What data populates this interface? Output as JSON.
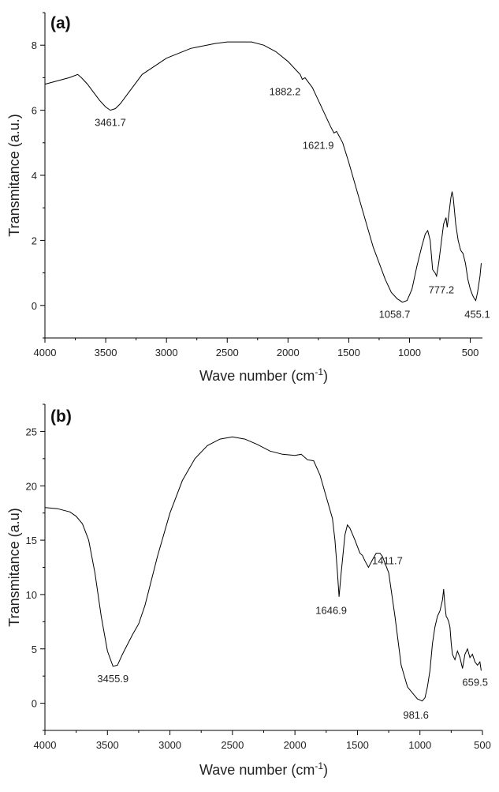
{
  "chart_data": [
    {
      "type": "line",
      "panel_label": "(a)",
      "xlabel": "Wave number (cm",
      "xlabel_sup": "-1",
      "xlabel_tail": ")",
      "ylabel": "Transmitance (a.u.)",
      "xlim": [
        4000,
        400
      ],
      "ylim": [
        -1,
        9
      ],
      "xticks": [
        4000,
        3500,
        3000,
        2500,
        2000,
        1500,
        1000,
        500
      ],
      "yticks": [
        0,
        2,
        4,
        6,
        8
      ],
      "grid": false,
      "series": [
        {
          "x": [
            4000,
            3900,
            3800,
            3730,
            3700,
            3650,
            3600,
            3550,
            3500,
            3461.7,
            3420,
            3380,
            3300,
            3200,
            3000,
            2800,
            2600,
            2500,
            2400,
            2300,
            2200,
            2100,
            2000,
            1950,
            1900,
            1882.2,
            1860,
            1800,
            1750,
            1700,
            1650,
            1621.9,
            1600,
            1550,
            1500,
            1400,
            1300,
            1200,
            1150,
            1100,
            1058.7,
            1020,
            980,
            940,
            900,
            870,
            850,
            830,
            810,
            790,
            777.2,
            760,
            740,
            720,
            700,
            690,
            670,
            660,
            650,
            640,
            620,
            600,
            580,
            560,
            540,
            520,
            500,
            480,
            465,
            455.1,
            440,
            420,
            410
          ],
          "y": [
            6.8,
            6.9,
            7.0,
            7.1,
            7.0,
            6.8,
            6.55,
            6.3,
            6.1,
            6.0,
            6.05,
            6.2,
            6.6,
            7.1,
            7.6,
            7.9,
            8.05,
            8.1,
            8.1,
            8.1,
            8.0,
            7.8,
            7.5,
            7.3,
            7.1,
            6.95,
            7.0,
            6.7,
            6.3,
            5.9,
            5.5,
            5.3,
            5.35,
            5.0,
            4.4,
            3.1,
            1.8,
            0.8,
            0.4,
            0.2,
            0.1,
            0.15,
            0.5,
            1.2,
            1.8,
            2.2,
            2.3,
            2.0,
            1.1,
            1.0,
            0.9,
            1.3,
            1.9,
            2.5,
            2.7,
            2.4,
            3.0,
            3.3,
            3.5,
            3.3,
            2.5,
            2.0,
            1.7,
            1.6,
            1.3,
            0.8,
            0.5,
            0.3,
            0.2,
            0.15,
            0.4,
            0.9,
            1.3
          ]
        }
      ],
      "annotations": [
        {
          "text": "3461.7",
          "x": 3461.7,
          "y": 6.0
        },
        {
          "text": "1882.2",
          "x": 1882.2,
          "y": 6.95
        },
        {
          "text": "1621.9",
          "x": 1621.9,
          "y": 5.3
        },
        {
          "text": "1058.7",
          "x": 1058.7,
          "y": 0.1
        },
        {
          "text": "777.2",
          "x": 777.2,
          "y": 0.9
        },
        {
          "text": "455.1",
          "x": 455.1,
          "y": 0.15
        }
      ]
    },
    {
      "type": "line",
      "panel_label": "(b)",
      "xlabel": "Wave number (cm",
      "xlabel_sup": "-1",
      "xlabel_tail": ")",
      "ylabel": "Transmitance (a.u)",
      "xlim": [
        4000,
        500
      ],
      "ylim": [
        -2.5,
        27.5
      ],
      "xticks": [
        4000,
        3500,
        3000,
        2500,
        2000,
        1500,
        1000,
        500
      ],
      "yticks": [
        0,
        5,
        10,
        15,
        20,
        25
      ],
      "grid": false,
      "series": [
        {
          "x": [
            4000,
            3900,
            3800,
            3750,
            3700,
            3650,
            3600,
            3550,
            3500,
            3455.9,
            3420,
            3380,
            3300,
            3250,
            3200,
            3100,
            3000,
            2900,
            2800,
            2700,
            2600,
            2500,
            2400,
            2300,
            2200,
            2100,
            2000,
            1950,
            1900,
            1850,
            1800,
            1750,
            1700,
            1680,
            1660,
            1646.9,
            1630,
            1600,
            1580,
            1560,
            1520,
            1480,
            1460,
            1440,
            1411.7,
            1380,
            1350,
            1320,
            1300,
            1250,
            1200,
            1150,
            1100,
            1050,
            1020,
            981.6,
            960,
            940,
            920,
            900,
            880,
            860,
            840,
            820,
            810,
            800,
            790,
            780,
            770,
            760,
            750,
            740,
            720,
            700,
            680,
            659.5,
            640,
            620,
            600,
            580,
            560,
            540,
            520,
            510
          ],
          "y": [
            18.0,
            17.9,
            17.6,
            17.2,
            16.5,
            15.0,
            12.0,
            8.0,
            4.8,
            3.4,
            3.5,
            4.5,
            6.3,
            7.3,
            9.0,
            13.5,
            17.5,
            20.5,
            22.5,
            23.7,
            24.3,
            24.5,
            24.3,
            23.8,
            23.2,
            22.9,
            22.8,
            22.9,
            22.4,
            22.3,
            21.0,
            19.0,
            17.0,
            15.0,
            12.0,
            9.8,
            12.0,
            15.5,
            16.4,
            16.1,
            15.0,
            13.8,
            13.6,
            13.1,
            12.5,
            13.2,
            13.8,
            13.8,
            13.5,
            12.0,
            8.0,
            3.5,
            1.5,
            0.8,
            0.4,
            0.2,
            0.5,
            1.5,
            3.0,
            5.5,
            7.0,
            8.0,
            8.5,
            9.5,
            10.5,
            9.0,
            8.0,
            7.8,
            7.5,
            7.0,
            5.5,
            4.5,
            4.0,
            4.8,
            4.2,
            3.2,
            4.5,
            5.0,
            4.2,
            4.5,
            3.8,
            3.5,
            3.8,
            3.0
          ]
        }
      ],
      "annotations": [
        {
          "text": "3455.9",
          "x": 3455.9,
          "y": 3.4
        },
        {
          "text": "1646.9",
          "x": 1646.9,
          "y": 9.8
        },
        {
          "text": "1411.7",
          "x": 1411.7,
          "y": 12.5
        },
        {
          "text": "981.6",
          "x": 981.6,
          "y": 0.2
        },
        {
          "text": "659.5",
          "x": 659.5,
          "y": 3.2
        }
      ]
    }
  ]
}
